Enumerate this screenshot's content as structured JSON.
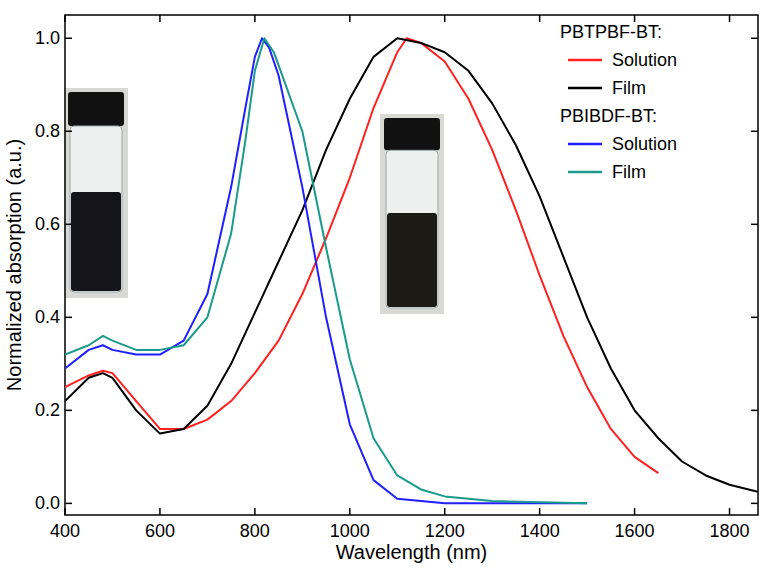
{
  "chart_data": {
    "type": "line",
    "x_label": "Wavelength (nm)",
    "y_label": "Normalized absorption (a.u.)",
    "xlim": [
      400,
      1860
    ],
    "ylim": [
      -0.025,
      1.05
    ],
    "xticks": [
      400,
      600,
      800,
      1000,
      1200,
      1400,
      1600,
      1800
    ],
    "yticks": [
      {
        "value": 0,
        "label": "0.0"
      },
      {
        "value": 0.2,
        "label": "0.2"
      },
      {
        "value": 0.4,
        "label": "0.4"
      },
      {
        "value": 0.6,
        "label": "0.6"
      },
      {
        "value": 0.8,
        "label": "0.8"
      },
      {
        "value": 1,
        "label": "1.0"
      }
    ],
    "grid": false,
    "legend": "upper right",
    "series": [
      {
        "group": "PBTPBF-BT:",
        "name": "Solution",
        "color": "#ff2020",
        "x": [
          400,
          450,
          480,
          500,
          550,
          600,
          650,
          700,
          750,
          800,
          850,
          900,
          950,
          1000,
          1050,
          1100,
          1120,
          1150,
          1200,
          1250,
          1300,
          1350,
          1400,
          1450,
          1500,
          1550,
          1600,
          1650
        ],
        "values": [
          0.25,
          0.275,
          0.285,
          0.28,
          0.22,
          0.16,
          0.16,
          0.18,
          0.22,
          0.28,
          0.35,
          0.45,
          0.57,
          0.7,
          0.85,
          0.97,
          1.0,
          0.99,
          0.95,
          0.87,
          0.76,
          0.63,
          0.49,
          0.36,
          0.25,
          0.16,
          0.1,
          0.065
        ]
      },
      {
        "group": "PBTPBF-BT:",
        "name": "Film",
        "color": "#000000",
        "x": [
          400,
          450,
          480,
          500,
          550,
          600,
          650,
          700,
          750,
          800,
          850,
          900,
          950,
          1000,
          1050,
          1100,
          1150,
          1200,
          1250,
          1300,
          1350,
          1400,
          1450,
          1500,
          1550,
          1600,
          1650,
          1700,
          1750,
          1800,
          1860
        ],
        "values": [
          0.22,
          0.27,
          0.28,
          0.27,
          0.2,
          0.15,
          0.16,
          0.21,
          0.3,
          0.41,
          0.52,
          0.63,
          0.76,
          0.87,
          0.96,
          1.0,
          0.99,
          0.97,
          0.93,
          0.86,
          0.77,
          0.66,
          0.53,
          0.4,
          0.29,
          0.2,
          0.14,
          0.09,
          0.06,
          0.04,
          0.025
        ]
      },
      {
        "group": "PBIBDF-BT:",
        "name": "Solution",
        "color": "#1f1fff",
        "x": [
          400,
          450,
          480,
          500,
          550,
          600,
          650,
          700,
          750,
          780,
          800,
          815,
          830,
          850,
          900,
          950,
          1000,
          1050,
          1100,
          1150,
          1200,
          1300,
          1500
        ],
        "values": [
          0.29,
          0.33,
          0.34,
          0.33,
          0.32,
          0.32,
          0.35,
          0.45,
          0.68,
          0.85,
          0.96,
          1.0,
          0.98,
          0.92,
          0.68,
          0.4,
          0.17,
          0.05,
          0.01,
          0.005,
          0,
          0,
          0
        ]
      },
      {
        "group": "PBIBDF-BT:",
        "name": "Film",
        "color": "#1a9a8a",
        "x": [
          400,
          450,
          480,
          500,
          550,
          600,
          650,
          700,
          750,
          780,
          800,
          820,
          840,
          900,
          950,
          1000,
          1050,
          1100,
          1150,
          1200,
          1300,
          1500
        ],
        "values": [
          0.32,
          0.34,
          0.36,
          0.35,
          0.33,
          0.33,
          0.34,
          0.4,
          0.58,
          0.78,
          0.93,
          1.0,
          0.97,
          0.8,
          0.55,
          0.31,
          0.14,
          0.06,
          0.03,
          0.015,
          0.005,
          0
        ]
      }
    ]
  }
}
